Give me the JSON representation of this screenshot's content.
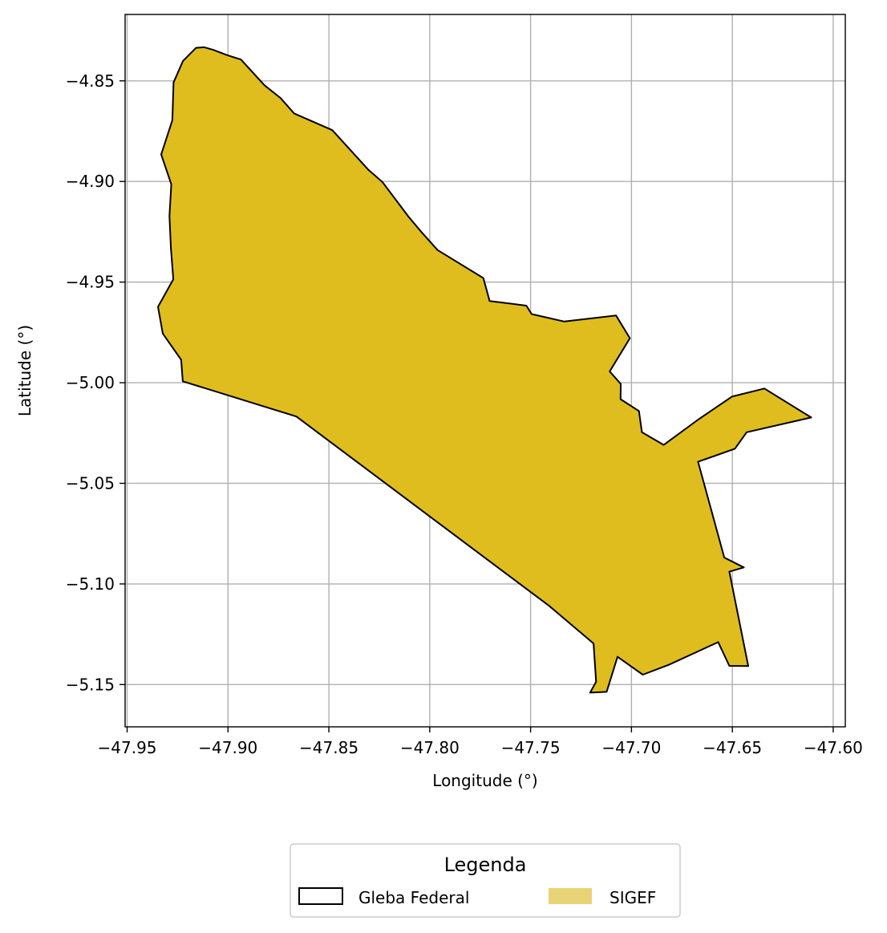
{
  "chart_data": {
    "type": "map",
    "xlabel": "Longitude (°)",
    "ylabel": "Latitude (°)",
    "xlim": [
      -47.951,
      -47.594
    ],
    "ylim": [
      -5.171,
      -4.817
    ],
    "x_ticks": [
      -47.95,
      -47.9,
      -47.85,
      -47.8,
      -47.75,
      -47.7,
      -47.65,
      -47.6
    ],
    "x_tick_labels": [
      "−47.95",
      "−47.90",
      "−47.85",
      "−47.80",
      "−47.75",
      "−47.70",
      "−47.65",
      "−47.60"
    ],
    "y_ticks": [
      -4.85,
      -4.9,
      -4.95,
      -5.0,
      -5.05,
      -5.1,
      -5.15
    ],
    "y_tick_labels": [
      "−4.85",
      "−4.90",
      "−4.95",
      "−5.00",
      "−5.05",
      "−5.10",
      "−5.15"
    ],
    "grid": true,
    "legend": {
      "title": "Legenda",
      "placement": "bottom-center",
      "entries": [
        {
          "label": "Gleba Federal",
          "style": "outline",
          "color": "#000000"
        },
        {
          "label": "SIGEF",
          "style": "fill",
          "color": "#e8d477"
        }
      ]
    },
    "layers": [
      {
        "name": "SIGEF",
        "fill": "#dfbd1f",
        "stroke": "none",
        "coords": [
          [
            -47.9118,
            -4.8333
          ],
          [
            -47.9074,
            -4.8346
          ],
          [
            -47.9002,
            -4.8373
          ],
          [
            -47.8936,
            -4.8394
          ],
          [
            -47.8819,
            -4.8522
          ],
          [
            -47.874,
            -4.8585
          ],
          [
            -47.8672,
            -4.8662
          ],
          [
            -47.8483,
            -4.8745
          ],
          [
            -47.8306,
            -4.894
          ],
          [
            -47.8235,
            -4.9002
          ],
          [
            -47.8105,
            -4.9175
          ],
          [
            -47.8043,
            -4.9249
          ],
          [
            -47.7961,
            -4.9341
          ],
          [
            -47.7734,
            -4.948
          ],
          [
            -47.7703,
            -4.9594
          ],
          [
            -47.7521,
            -4.9617
          ],
          [
            -47.7495,
            -4.9659
          ],
          [
            -47.7333,
            -4.9696
          ],
          [
            -47.7076,
            -4.9666
          ],
          [
            -47.7008,
            -4.9779
          ],
          [
            -47.7108,
            -4.9944
          ],
          [
            -47.7053,
            -5.0006
          ],
          [
            -47.7054,
            -5.0082
          ],
          [
            -47.6963,
            -5.0141
          ],
          [
            -47.6948,
            -5.0246
          ],
          [
            -47.684,
            -5.0309
          ],
          [
            -47.6669,
            -5.0183
          ],
          [
            -47.6502,
            -5.0069
          ],
          [
            -47.6341,
            -5.0029
          ],
          [
            -47.6109,
            -5.0173
          ],
          [
            -47.6429,
            -5.0246
          ],
          [
            -47.6487,
            -5.0328
          ],
          [
            -47.667,
            -5.0393
          ],
          [
            -47.654,
            -5.0869
          ],
          [
            -47.6443,
            -5.0918
          ],
          [
            -47.6515,
            -5.0939
          ],
          [
            -47.6421,
            -5.1408
          ],
          [
            -47.6515,
            -5.1407
          ],
          [
            -47.657,
            -5.1289
          ],
          [
            -47.6815,
            -5.1402
          ],
          [
            -47.6944,
            -5.1451
          ],
          [
            -47.7069,
            -5.1362
          ],
          [
            -47.7123,
            -5.1536
          ],
          [
            -47.7205,
            -5.154
          ],
          [
            -47.7175,
            -5.1486
          ],
          [
            -47.7188,
            -5.1296
          ],
          [
            -47.7408,
            -5.1109
          ],
          [
            -47.7849,
            -5.0778
          ],
          [
            -47.8661,
            -5.0168
          ],
          [
            -47.9224,
            -4.9993
          ],
          [
            -47.9232,
            -4.9886
          ],
          [
            -47.9323,
            -4.9756
          ],
          [
            -47.9347,
            -4.9623
          ],
          [
            -47.9271,
            -4.9486
          ],
          [
            -47.9283,
            -4.933
          ],
          [
            -47.929,
            -4.9172
          ],
          [
            -47.9281,
            -4.9014
          ],
          [
            -47.9331,
            -4.8866
          ],
          [
            -47.9276,
            -4.8696
          ],
          [
            -47.927,
            -4.8508
          ],
          [
            -47.9223,
            -4.8401
          ],
          [
            -47.9158,
            -4.8336
          ],
          [
            -47.9118,
            -4.8333
          ]
        ]
      },
      {
        "name": "Gleba Federal",
        "fill": "none",
        "stroke": "#000000",
        "coords": [
          [
            -47.9118,
            -4.8333
          ],
          [
            -47.9074,
            -4.8346
          ],
          [
            -47.9002,
            -4.8373
          ],
          [
            -47.8936,
            -4.8394
          ],
          [
            -47.8819,
            -4.8522
          ],
          [
            -47.874,
            -4.8585
          ],
          [
            -47.8672,
            -4.8662
          ],
          [
            -47.8483,
            -4.8745
          ],
          [
            -47.8306,
            -4.894
          ],
          [
            -47.8235,
            -4.9002
          ],
          [
            -47.8105,
            -4.9175
          ],
          [
            -47.8043,
            -4.9249
          ],
          [
            -47.7961,
            -4.9341
          ],
          [
            -47.7734,
            -4.948
          ],
          [
            -47.7703,
            -4.9594
          ],
          [
            -47.7521,
            -4.9617
          ],
          [
            -47.7495,
            -4.9659
          ],
          [
            -47.7333,
            -4.9696
          ],
          [
            -47.7076,
            -4.9666
          ],
          [
            -47.7008,
            -4.9779
          ],
          [
            -47.7108,
            -4.9944
          ],
          [
            -47.7053,
            -5.0006
          ],
          [
            -47.7054,
            -5.0082
          ],
          [
            -47.6963,
            -5.0141
          ],
          [
            -47.6948,
            -5.0246
          ],
          [
            -47.684,
            -5.0309
          ],
          [
            -47.6669,
            -5.0183
          ],
          [
            -47.6502,
            -5.0069
          ],
          [
            -47.6341,
            -5.0029
          ],
          [
            -47.6109,
            -5.0173
          ],
          [
            -47.6429,
            -5.0246
          ],
          [
            -47.6487,
            -5.0328
          ],
          [
            -47.667,
            -5.0393
          ],
          [
            -47.654,
            -5.0869
          ],
          [
            -47.6443,
            -5.0918
          ],
          [
            -47.6515,
            -5.0939
          ],
          [
            -47.6421,
            -5.1408
          ],
          [
            -47.6515,
            -5.1407
          ],
          [
            -47.657,
            -5.1289
          ],
          [
            -47.6815,
            -5.1402
          ],
          [
            -47.6944,
            -5.1451
          ],
          [
            -47.7069,
            -5.1362
          ],
          [
            -47.7123,
            -5.1536
          ],
          [
            -47.7205,
            -5.154
          ],
          [
            -47.7175,
            -5.1486
          ],
          [
            -47.7188,
            -5.1296
          ],
          [
            -47.7408,
            -5.1109
          ],
          [
            -47.7849,
            -5.0778
          ],
          [
            -47.8661,
            -5.0168
          ],
          [
            -47.9224,
            -4.9993
          ],
          [
            -47.9232,
            -4.9886
          ],
          [
            -47.9323,
            -4.9756
          ],
          [
            -47.9347,
            -4.9623
          ],
          [
            -47.9271,
            -4.9486
          ],
          [
            -47.9283,
            -4.933
          ],
          [
            -47.929,
            -4.9172
          ],
          [
            -47.9281,
            -4.9014
          ],
          [
            -47.9331,
            -4.8866
          ],
          [
            -47.9276,
            -4.8696
          ],
          [
            -47.927,
            -4.8508
          ],
          [
            -47.9223,
            -4.8401
          ],
          [
            -47.9158,
            -4.8336
          ],
          [
            -47.9118,
            -4.8333
          ]
        ]
      }
    ]
  }
}
